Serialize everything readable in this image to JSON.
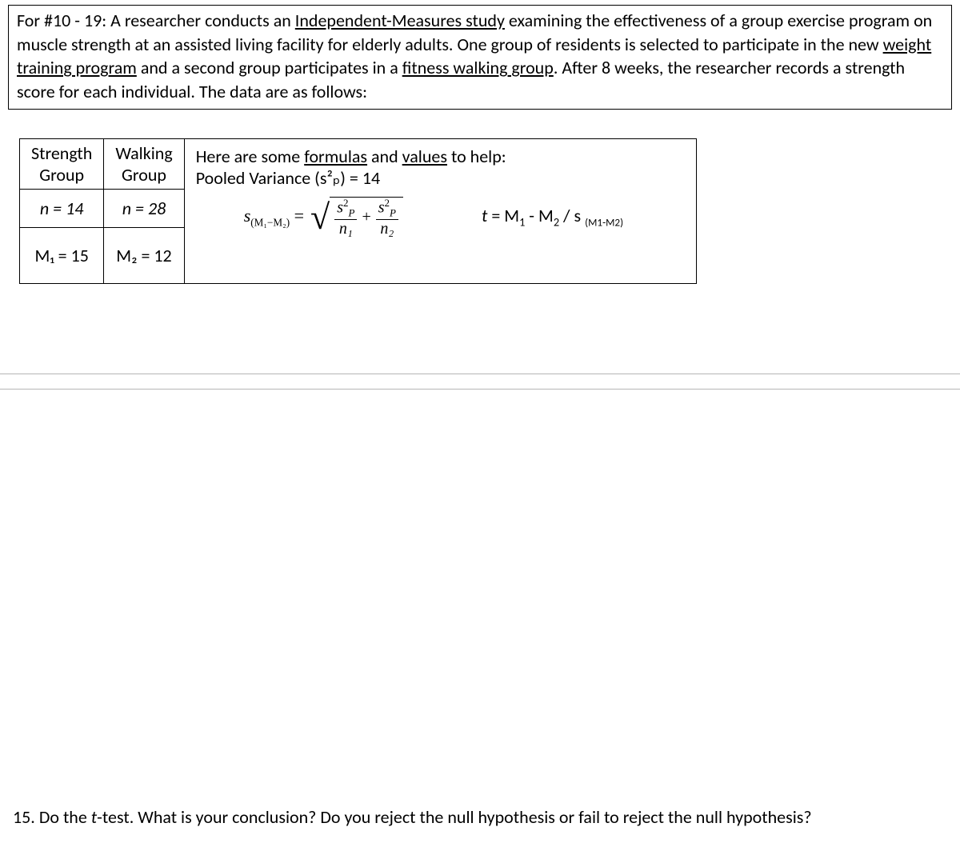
{
  "intro": {
    "prefix": "For #10 - 19: A researcher conducts an ",
    "u1": "Independent-Measures study",
    "mid1": " examining the effectiveness of a group exercise program on muscle strength at an assisted living facility for elderly adults. One group of residents is selected to participate in the new ",
    "u2": "weight training program",
    "mid2": " and a second group participates in a ",
    "u3": "fitness walking group",
    "suffix": ". After 8 weeks, the researcher records a strength score for each individual. The data are as follows:"
  },
  "table": {
    "col1_header1": "Strength",
    "col1_header2": "Group",
    "col2_header1": "Walking",
    "col2_header2": "Group",
    "n1": "n = 14",
    "n2": "n = 28",
    "m1": "M₁ = 15",
    "m2": "M₂ = 12"
  },
  "formulas": {
    "help_prefix": "Here are some ",
    "help_u1": "formulas",
    "help_mid": " and ",
    "help_u2": "values",
    "help_suffix": " to help:",
    "pooled": "Pooled Variance (s²ₚ) = 14",
    "s_label": "s",
    "s_sub": "(M₁−M₂)",
    "equals": " = ",
    "sp2": "s",
    "n1": "n₁",
    "n2": "n₂",
    "plus": "+",
    "t_formula": "t = M₁ - M₂ / s ",
    "t_sub": "(M1-M2)"
  },
  "question": {
    "text": "15. Do the t-test. What is your conclusion? Do you reject the null hypothesis or fail to reject the null hypothesis?",
    "prefix": "15. Do the ",
    "italic": "t",
    "suffix": "-test. What is your conclusion? Do you reject the null hypothesis or fail to reject the null hypothesis?"
  }
}
